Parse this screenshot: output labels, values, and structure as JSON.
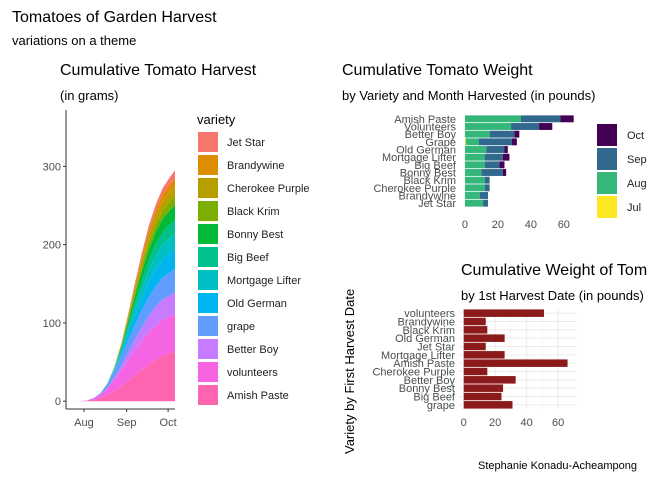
{
  "page": {
    "title": "Tomatoes of Garden Harvest",
    "subtitle": "variations on a theme",
    "caption": "Stephanie Konadu-Acheampong"
  },
  "chart_data": [
    {
      "id": "cumulative-harvest",
      "type": "area",
      "title": "Cumulative Tomato Harvest",
      "subtitle": "(in grams)",
      "xlabel": "",
      "ylabel": "",
      "x_ticks": [
        "Aug",
        "Sep",
        "Oct"
      ],
      "x_tick_days": [
        0,
        31,
        61
      ],
      "x_range_days": [
        -13,
        66
      ],
      "y_ticks": [
        0,
        100,
        200,
        300
      ],
      "ylim": [
        -10,
        372
      ],
      "x_days": [
        -13,
        -8,
        -3,
        2,
        7,
        12,
        17,
        22,
        27,
        32,
        37,
        42,
        47,
        52,
        57,
        62,
        66
      ],
      "stack_order_bottom_to_top": [
        "Amish Paste",
        "volunteers",
        "Better Boy",
        "grape",
        "Old German",
        "Mortgage Lifter",
        "Big Beef",
        "Bonny Best",
        "Black Krim",
        "Cherokee Purple",
        "Brandywine",
        "Jet Star"
      ],
      "legend_title": "variety",
      "legend_position": "right",
      "grid": false,
      "series": [
        {
          "name": "Jet Star",
          "color": "#F8766D",
          "values": [
            0,
            0,
            0,
            0,
            0,
            0,
            0,
            0.1,
            0.5,
            1.5,
            3,
            4.5,
            6,
            7,
            8,
            9,
            10
          ]
        },
        {
          "name": "Brandywine",
          "color": "#DE8C00",
          "values": [
            0,
            0,
            0,
            0,
            0,
            0,
            0,
            0.1,
            0.6,
            1.8,
            3.5,
            5,
            6.5,
            8,
            9,
            10,
            10.5
          ]
        },
        {
          "name": "Cherokee Purple",
          "color": "#B79F00",
          "values": [
            0,
            0,
            0,
            0,
            0,
            0,
            0.1,
            0.4,
            1.2,
            3,
            5,
            7,
            9,
            10.5,
            11.5,
            12,
            12.5
          ]
        },
        {
          "name": "Black Krim",
          "color": "#7CAE00",
          "values": [
            0,
            0,
            0,
            0,
            0,
            0,
            0.1,
            0.5,
            1.5,
            3,
            5,
            7,
            8.5,
            9.5,
            10.5,
            11,
            11.5
          ]
        },
        {
          "name": "Bonny Best",
          "color": "#00BA38",
          "values": [
            0,
            0,
            0,
            0,
            0,
            0,
            0.2,
            0.8,
            2.5,
            5,
            8,
            11,
            13.5,
            15.5,
            17,
            18,
            18.5
          ]
        },
        {
          "name": "Big Beef",
          "color": "#00C08B",
          "values": [
            0,
            0,
            0,
            0,
            0,
            0,
            0.2,
            0.8,
            2.5,
            5,
            8,
            10.5,
            13,
            15,
            16.5,
            17.5,
            18
          ]
        },
        {
          "name": "Mortgage Lifter",
          "color": "#00BFC4",
          "values": [
            0,
            0,
            0,
            0,
            0,
            0,
            0.2,
            1,
            3,
            6,
            9,
            12,
            15,
            17,
            18.5,
            19.5,
            20
          ]
        },
        {
          "name": "Old German",
          "color": "#00B4F0",
          "values": [
            0,
            0,
            0,
            0,
            0,
            0,
            0.3,
            1.5,
            4,
            8,
            12,
            16,
            19,
            21,
            23,
            24.5,
            25
          ]
        },
        {
          "name": "grape",
          "color": "#619CFF",
          "values": [
            0,
            0,
            0,
            0,
            0.3,
            1.5,
            4,
            8,
            12,
            16,
            19,
            22,
            24.5,
            26.5,
            28,
            29,
            30
          ]
        },
        {
          "name": "Better Boy",
          "color": "#C77CFF",
          "values": [
            0,
            0,
            0,
            0,
            0.1,
            0.5,
            1.5,
            3.5,
            6.5,
            10,
            14,
            17.5,
            21,
            24,
            26,
            27,
            28
          ]
        },
        {
          "name": "volunteers",
          "color": "#F564E3",
          "values": [
            0,
            0,
            0.1,
            0.5,
            2,
            4.5,
            8,
            14,
            20,
            26,
            32,
            37,
            41,
            44,
            46,
            47,
            48
          ]
        },
        {
          "name": "Amish Paste",
          "color": "#FF64B0",
          "values": [
            0,
            0,
            0,
            0.3,
            1.5,
            4,
            8,
            13,
            19,
            26,
            33,
            40,
            47,
            53,
            58,
            61,
            63
          ]
        }
      ]
    },
    {
      "id": "weight-by-month",
      "type": "bar",
      "orientation": "horizontal",
      "stacked": true,
      "title": "Cumulative Tomato Weight",
      "subtitle": "by Variety and Month Harvested (in pounds)",
      "xlabel": "",
      "ylabel": "",
      "x_ticks": [
        0,
        20,
        40,
        60
      ],
      "xlim": [
        -3,
        68
      ],
      "legend_position": "right",
      "grid": false,
      "categories": [
        "Amish Paste",
        "Volunteers",
        "Better Boy",
        "Grape",
        "Old German",
        "Mortgage Lifter",
        "Big Beef",
        "Bonny Best",
        "Black Krim",
        "Cherokee Purple",
        "Brandywine",
        "Jet Star"
      ],
      "series": [
        {
          "name": "Jul",
          "color": "#FDE725",
          "values": [
            0,
            0,
            0,
            0.5,
            0,
            0,
            0,
            0,
            0,
            0,
            0,
            0
          ]
        },
        {
          "name": "Aug",
          "color": "#35B779",
          "values": [
            34,
            28,
            15,
            8,
            13,
            12,
            12,
            10,
            12,
            12,
            9,
            11
          ]
        },
        {
          "name": "Sep",
          "color": "#31688E",
          "values": [
            24,
            17,
            15,
            20,
            11,
            11,
            9,
            13,
            3,
            3,
            5,
            3
          ]
        },
        {
          "name": "Oct",
          "color": "#440154",
          "values": [
            8,
            8,
            3,
            3,
            2,
            4,
            3,
            2,
            0,
            0,
            0,
            0
          ]
        }
      ],
      "legend_order": [
        "Oct",
        "Sep",
        "Aug",
        "Jul"
      ]
    },
    {
      "id": "weight-by-first-harvest",
      "type": "bar",
      "orientation": "horizontal",
      "title": "Cumulative Weight of Tom",
      "subtitle": "by 1st Harvest Date (in pounds)",
      "xlabel": "",
      "ylabel": "Variety by First Harvest Date",
      "x_ticks": [
        0,
        20,
        40,
        60
      ],
      "xlim": [
        -3,
        72
      ],
      "bar_color": "#8B1A1A",
      "grid": true,
      "categories": [
        "volunteers",
        "Brandywine",
        "Black Krim",
        "Old German",
        "Jet Star",
        "Mortgage Lifter",
        "Amish Paste",
        "Cherokee Purple",
        "Better Boy",
        "Bonny Best",
        "Big Beef",
        "grape"
      ],
      "values": [
        51,
        14,
        15,
        26,
        14,
        26,
        66,
        15,
        33,
        25,
        24,
        31
      ]
    }
  ]
}
